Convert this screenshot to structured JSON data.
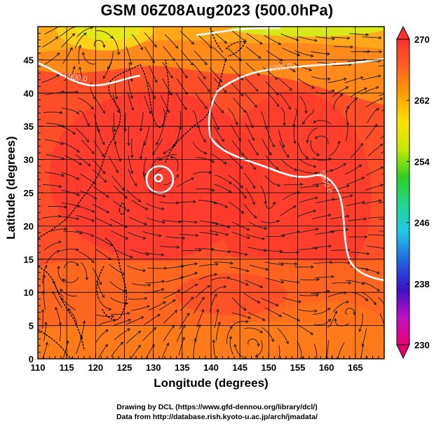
{
  "title": "GSM 06Z08Aug2023 (500.0hPa)",
  "map": {
    "xlabel": "Longitude (degrees)",
    "ylabel": "Latitude  (degrees)",
    "lon_ticks": [
      "110",
      "115",
      "120",
      "125",
      "130",
      "135",
      "140",
      "145",
      "150",
      "155",
      "160",
      "165"
    ],
    "lat_ticks": [
      "0",
      "5",
      "10",
      "15",
      "20",
      "25",
      "30",
      "35",
      "40",
      "45"
    ],
    "lon_range": [
      110,
      170
    ],
    "lat_range": [
      0,
      50
    ],
    "contour_labels": [
      {
        "text": "5900.0",
        "lon": 116.5,
        "lat": 42.0
      },
      {
        "text": "5900.0",
        "lon": 152.0,
        "lat": 43.5
      },
      {
        "text": "5900.0",
        "lon": 159.5,
        "lat": 26.5
      }
    ],
    "contour_value": 5900.0,
    "field": "temperature (K)",
    "vectors": "wind streamlines"
  },
  "colorbar": {
    "ticks": [
      "270",
      "262",
      "254",
      "246",
      "238",
      "230"
    ],
    "range": [
      230,
      270
    ],
    "colors": [
      "#e8006e",
      "#c010c8",
      "#3a10c8",
      "#2060e0",
      "#20c8e8",
      "#20d890",
      "#30d020",
      "#c8e800",
      "#ffe000",
      "#ffa000",
      "#ff6020",
      "#ff3030"
    ]
  },
  "credits": {
    "line1": "Drawing by DCL (https://www.gfd-dennou.org/library/dcl/)",
    "line2": "Data from http://database.rish.kyoto-u.ac.jp/arch/jmadata/"
  }
}
